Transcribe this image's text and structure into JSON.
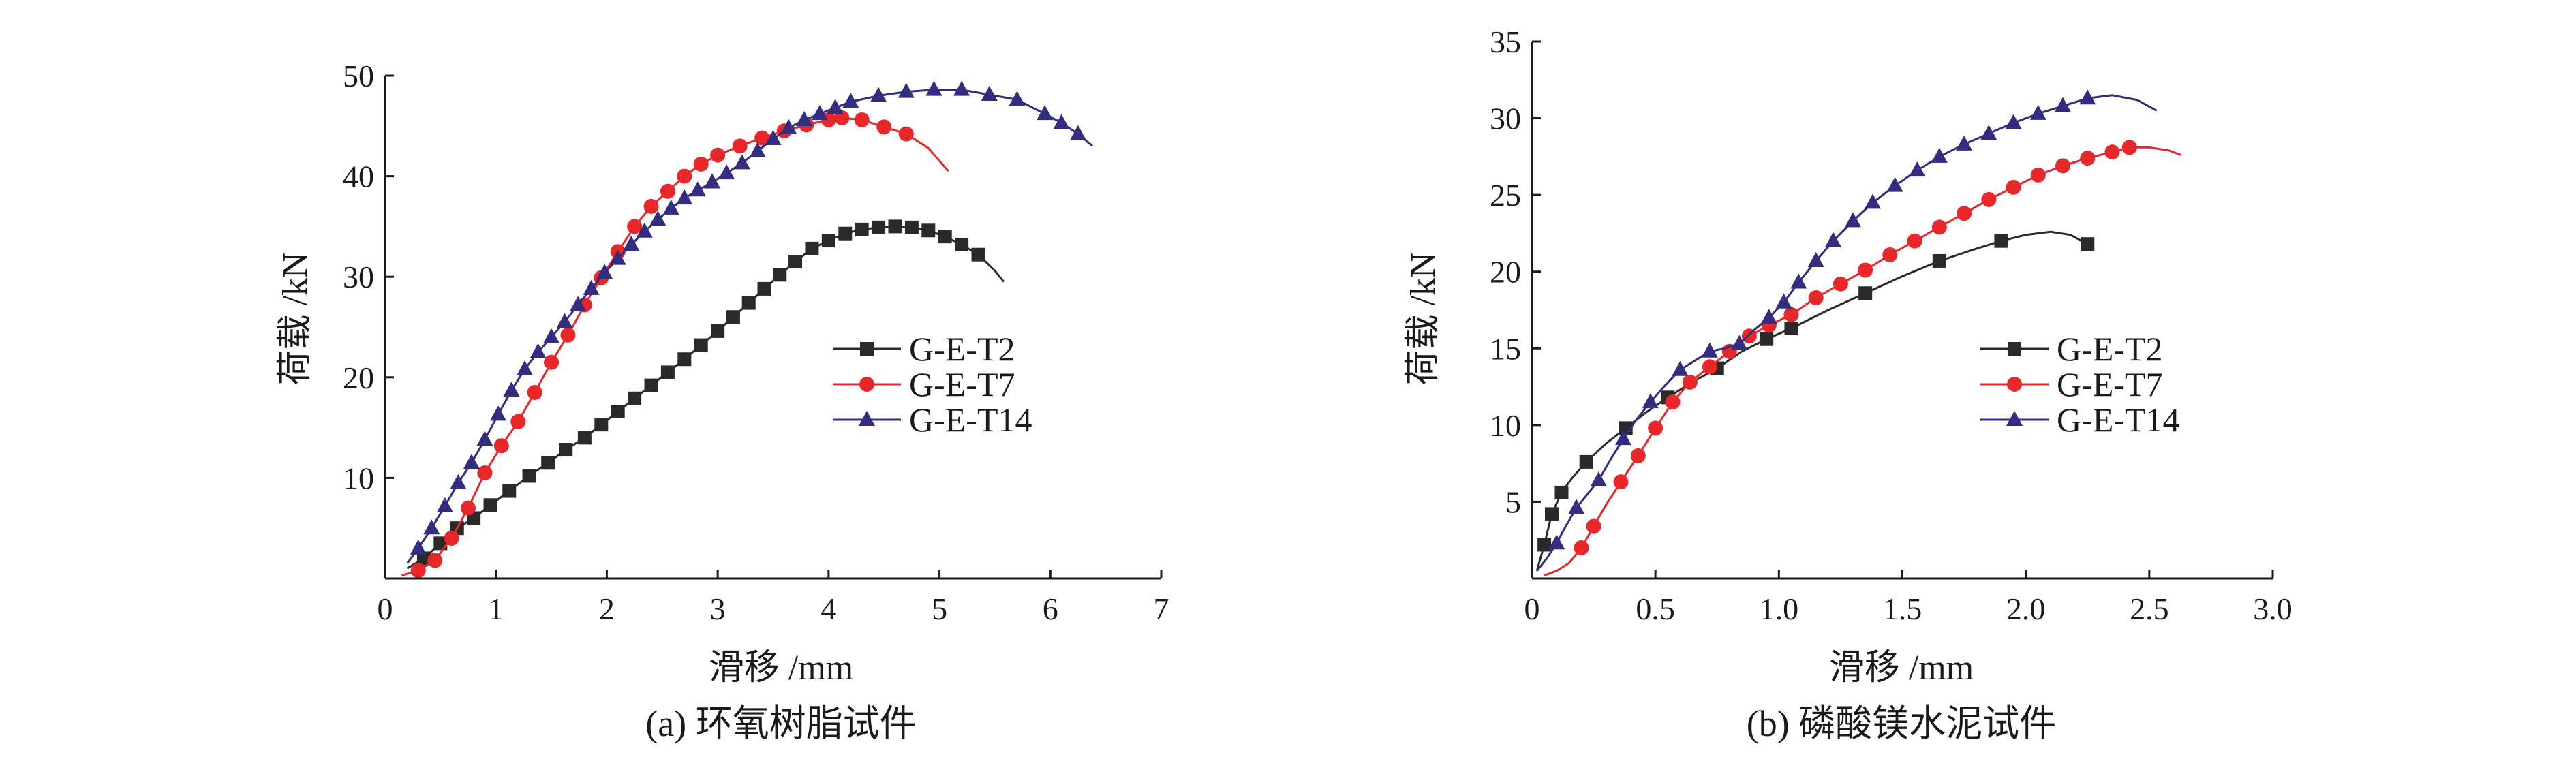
{
  "chart_data": [
    {
      "type": "line",
      "id": "a",
      "caption": "(a) 环氧树脂试件",
      "xlabel": "滑移 /mm",
      "ylabel": "荷载 /kN",
      "xlim": [
        0,
        7
      ],
      "ylim": [
        0,
        50
      ],
      "x_ticks": [
        0,
        1,
        2,
        3,
        4,
        5,
        6,
        7
      ],
      "x_tick_labels": [
        "0",
        "1",
        "2",
        "3",
        "4",
        "5",
        "6",
        "7"
      ],
      "y_ticks": [
        10,
        20,
        30,
        40,
        50
      ],
      "y_tick_labels": [
        "10",
        "20",
        "30",
        "40",
        "50"
      ],
      "grid": false,
      "legend_position": "right-middle",
      "series": [
        {
          "name": "G-E-T2",
          "color": "#2a2a2a",
          "marker": "square",
          "x": [
            0.2,
            0.35,
            0.5,
            0.65,
            0.8,
            0.95,
            1.12,
            1.3,
            1.47,
            1.63,
            1.8,
            1.95,
            2.1,
            2.25,
            2.4,
            2.55,
            2.7,
            2.85,
            3.0,
            3.14,
            3.28,
            3.42,
            3.56,
            3.7,
            3.85,
            4.0,
            4.15,
            4.3,
            4.45,
            4.6,
            4.75,
            4.9,
            5.05,
            5.2,
            5.35,
            5.5,
            5.58
          ],
          "y": [
            1.0,
            2.0,
            3.5,
            5.0,
            6.0,
            7.3,
            8.7,
            10.2,
            11.5,
            12.8,
            14.0,
            15.3,
            16.6,
            17.9,
            19.2,
            20.5,
            21.8,
            23.2,
            24.6,
            26.0,
            27.4,
            28.8,
            30.2,
            31.5,
            32.8,
            33.6,
            34.3,
            34.7,
            34.9,
            35.0,
            34.9,
            34.6,
            34.0,
            33.2,
            32.2,
            30.6,
            29.5
          ],
          "marker_every": 1,
          "marker_skip_last": 3
        },
        {
          "name": "G-E-T7",
          "color": "#e8272a",
          "marker": "circle",
          "x": [
            0.15,
            0.3,
            0.45,
            0.6,
            0.75,
            0.9,
            1.05,
            1.2,
            1.35,
            1.5,
            1.65,
            1.8,
            1.95,
            2.1,
            2.25,
            2.4,
            2.55,
            2.7,
            2.85,
            3.0,
            3.2,
            3.4,
            3.6,
            3.8,
            4.0,
            4.12,
            4.3,
            4.5,
            4.7,
            4.9,
            5.08
          ],
          "y": [
            0.3,
            0.8,
            1.8,
            4.0,
            7.0,
            10.5,
            13.2,
            15.6,
            18.5,
            21.5,
            24.2,
            27.2,
            29.9,
            32.5,
            35.0,
            37.0,
            38.5,
            40.0,
            41.2,
            42.1,
            43.0,
            43.8,
            44.5,
            45.1,
            45.6,
            45.8,
            45.6,
            44.9,
            44.2,
            42.8,
            40.5
          ],
          "marker_every": 1,
          "marker_skip_last": 3
        },
        {
          "name": "G-E-T14",
          "color": "#322d7e",
          "marker": "triangle",
          "x": [
            0.2,
            0.3,
            0.42,
            0.54,
            0.66,
            0.78,
            0.9,
            1.02,
            1.14,
            1.26,
            1.38,
            1.5,
            1.62,
            1.74,
            1.86,
            1.98,
            2.1,
            2.22,
            2.34,
            2.46,
            2.58,
            2.7,
            2.82,
            2.95,
            3.08,
            3.22,
            3.36,
            3.5,
            3.64,
            3.78,
            3.92,
            4.06,
            4.2,
            4.45,
            4.7,
            4.95,
            5.2,
            5.45,
            5.7,
            5.95,
            6.1,
            6.25,
            6.38
          ],
          "y": [
            1.5,
            3.0,
            5.0,
            7.2,
            9.5,
            11.5,
            13.8,
            16.3,
            18.7,
            20.8,
            22.5,
            24.0,
            25.5,
            27.2,
            28.8,
            30.4,
            31.8,
            33.2,
            34.5,
            35.7,
            36.8,
            37.8,
            38.6,
            39.4,
            40.3,
            41.3,
            42.5,
            43.7,
            44.8,
            45.6,
            46.2,
            46.8,
            47.4,
            48.0,
            48.4,
            48.6,
            48.6,
            48.1,
            47.6,
            46.2,
            45.3,
            44.2,
            43.0
          ],
          "marker_every": 1,
          "marker_skip_last": 2
        }
      ]
    },
    {
      "type": "line",
      "id": "b",
      "caption": "(b) 磷酸镁水泥试件",
      "xlabel": "滑移 /mm",
      "ylabel": "荷载 /kN",
      "xlim": [
        0,
        3.0
      ],
      "ylim": [
        0,
        35
      ],
      "x_ticks": [
        0,
        0.5,
        1.0,
        1.5,
        2.0,
        2.5,
        3.0
      ],
      "x_tick_labels": [
        "0",
        "0.5",
        "1.0",
        "1.5",
        "2.0",
        "2.5",
        "3.0"
      ],
      "y_ticks": [
        5,
        10,
        15,
        20,
        25,
        30,
        35
      ],
      "y_tick_labels": [
        "5",
        "10",
        "15",
        "20",
        "25",
        "30",
        "35"
      ],
      "grid": false,
      "legend_position": "right-middle",
      "series": [
        {
          "name": "G-E-T2",
          "color": "#2a2a2a",
          "marker": "square",
          "x": [
            0.02,
            0.05,
            0.08,
            0.12,
            0.16,
            0.22,
            0.3,
            0.38,
            0.46,
            0.55,
            0.65,
            0.75,
            0.85,
            0.95,
            1.05,
            1.2,
            1.35,
            1.5,
            1.65,
            1.8,
            1.9,
            2.0,
            2.1,
            2.18,
            2.25
          ],
          "y": [
            0.5,
            2.2,
            4.2,
            5.6,
            6.5,
            7.6,
            8.8,
            9.8,
            10.8,
            11.8,
            12.8,
            13.7,
            14.8,
            15.6,
            16.3,
            17.5,
            18.6,
            19.7,
            20.7,
            21.5,
            22.0,
            22.4,
            22.6,
            22.4,
            21.8
          ],
          "markers_at": [
            1,
            2,
            3,
            5,
            7,
            9,
            11,
            13,
            14,
            16,
            18,
            20,
            24
          ]
        },
        {
          "name": "G-E-T7",
          "color": "#e8272a",
          "marker": "circle",
          "x": [
            0.05,
            0.1,
            0.15,
            0.2,
            0.25,
            0.3,
            0.36,
            0.43,
            0.5,
            0.57,
            0.64,
            0.72,
            0.8,
            0.88,
            0.96,
            1.05,
            1.15,
            1.25,
            1.35,
            1.45,
            1.55,
            1.65,
            1.75,
            1.85,
            1.95,
            2.05,
            2.15,
            2.25,
            2.35,
            2.42,
            2.5,
            2.58,
            2.63
          ],
          "y": [
            0.2,
            0.5,
            1.0,
            2.0,
            3.4,
            4.8,
            6.3,
            8.0,
            9.8,
            11.5,
            12.8,
            13.8,
            14.8,
            15.8,
            16.5,
            17.2,
            18.3,
            19.2,
            20.1,
            21.1,
            22.0,
            22.9,
            23.8,
            24.7,
            25.5,
            26.3,
            26.9,
            27.4,
            27.8,
            28.1,
            28.1,
            27.9,
            27.6
          ],
          "markers_at": [
            3,
            4,
            6,
            7,
            8,
            9,
            10,
            11,
            12,
            13,
            14,
            15,
            16,
            17,
            18,
            19,
            20,
            21,
            22,
            23,
            24,
            25,
            26,
            27,
            28,
            29
          ]
        },
        {
          "name": "G-E-T14",
          "color": "#322d7e",
          "marker": "triangle",
          "x": [
            0.02,
            0.06,
            0.1,
            0.14,
            0.18,
            0.22,
            0.27,
            0.32,
            0.37,
            0.42,
            0.48,
            0.54,
            0.6,
            0.66,
            0.72,
            0.78,
            0.84,
            0.9,
            0.96,
            1.02,
            1.08,
            1.15,
            1.22,
            1.3,
            1.38,
            1.47,
            1.56,
            1.65,
            1.75,
            1.85,
            1.95,
            2.05,
            2.15,
            2.25,
            2.35,
            2.45,
            2.53
          ],
          "y": [
            0.5,
            1.3,
            2.3,
            3.5,
            4.6,
            5.4,
            6.4,
            7.8,
            9.1,
            10.3,
            11.5,
            12.6,
            13.6,
            14.2,
            14.8,
            15.0,
            15.3,
            16.2,
            17.0,
            18.0,
            19.3,
            20.7,
            22.0,
            23.3,
            24.5,
            25.6,
            26.6,
            27.5,
            28.3,
            29.0,
            29.7,
            30.3,
            30.8,
            31.3,
            31.5,
            31.2,
            30.5
          ],
          "markers_at": [
            2,
            4,
            6,
            8,
            10,
            12,
            14,
            16,
            18,
            19,
            20,
            21,
            22,
            23,
            24,
            25,
            26,
            27,
            28,
            29,
            30,
            31,
            32,
            33
          ]
        }
      ]
    }
  ]
}
